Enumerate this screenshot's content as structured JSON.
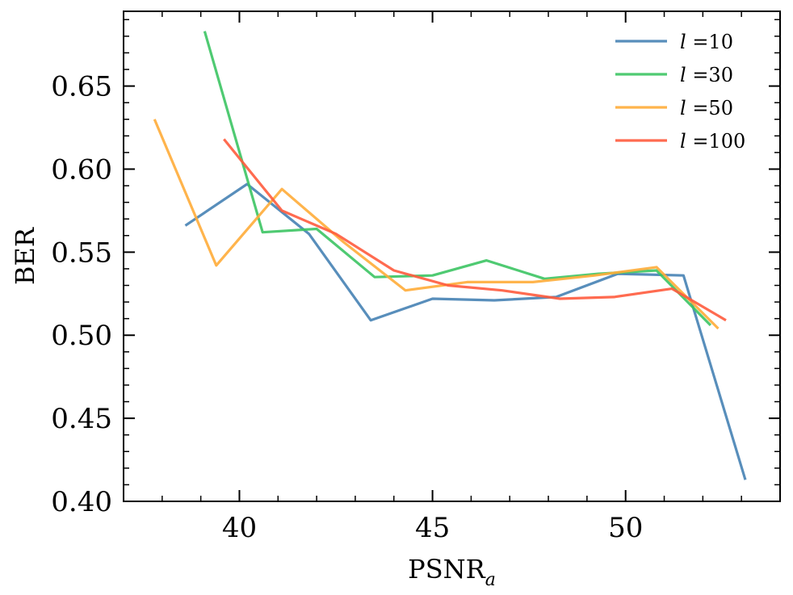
{
  "chart_data": {
    "type": "line",
    "title": "",
    "xlabel": "PSNR",
    "xlabel_subscript": "a",
    "ylabel": "BER",
    "xlim": [
      37,
      54
    ],
    "ylim": [
      0.4,
      0.695
    ],
    "xticks": [
      40,
      45,
      50
    ],
    "xtick_labels": [
      "40",
      "45",
      "50"
    ],
    "yticks": [
      0.4,
      0.45,
      0.5,
      0.55,
      0.6,
      0.65
    ],
    "ytick_labels": [
      "0.40",
      "0.45",
      "0.50",
      "0.55",
      "0.60",
      "0.65"
    ],
    "grid": false,
    "legend_position": "top-right",
    "series": [
      {
        "name": "l =10",
        "legend_var": "l",
        "legend_value": " =10",
        "color": "#4682b4",
        "points": [
          [
            38.6,
            0.566
          ],
          [
            40.2,
            0.591
          ],
          [
            41.8,
            0.561
          ],
          [
            43.4,
            0.509
          ],
          [
            45.0,
            0.522
          ],
          [
            46.6,
            0.521
          ],
          [
            48.2,
            0.523
          ],
          [
            49.8,
            0.537
          ],
          [
            51.5,
            0.536
          ],
          [
            53.1,
            0.413
          ]
        ]
      },
      {
        "name": "l =30",
        "legend_var": "l",
        "legend_value": " =30",
        "color": "#3cc463",
        "points": [
          [
            39.1,
            0.683
          ],
          [
            40.6,
            0.562
          ],
          [
            42.0,
            0.564
          ],
          [
            43.5,
            0.535
          ],
          [
            45.0,
            0.536
          ],
          [
            46.4,
            0.545
          ],
          [
            47.9,
            0.534
          ],
          [
            49.3,
            0.537
          ],
          [
            50.8,
            0.539
          ],
          [
            52.2,
            0.506
          ]
        ]
      },
      {
        "name": "l =50",
        "legend_var": "l",
        "legend_value": " =50",
        "color": "#ffac38",
        "points": [
          [
            37.8,
            0.63
          ],
          [
            39.4,
            0.542
          ],
          [
            41.1,
            0.588
          ],
          [
            42.7,
            0.556
          ],
          [
            44.3,
            0.527
          ],
          [
            45.9,
            0.532
          ],
          [
            47.6,
            0.532
          ],
          [
            49.2,
            0.536
          ],
          [
            50.8,
            0.541
          ],
          [
            52.4,
            0.504
          ]
        ]
      },
      {
        "name": "l =100",
        "legend_var": "l",
        "legend_value": " =100",
        "color": "#ff5b3d",
        "points": [
          [
            39.6,
            0.618
          ],
          [
            41.1,
            0.575
          ],
          [
            42.5,
            0.561
          ],
          [
            44.0,
            0.539
          ],
          [
            45.4,
            0.53
          ],
          [
            46.8,
            0.527
          ],
          [
            48.3,
            0.522
          ],
          [
            49.7,
            0.523
          ],
          [
            51.2,
            0.528
          ],
          [
            52.6,
            0.509
          ]
        ]
      }
    ]
  }
}
